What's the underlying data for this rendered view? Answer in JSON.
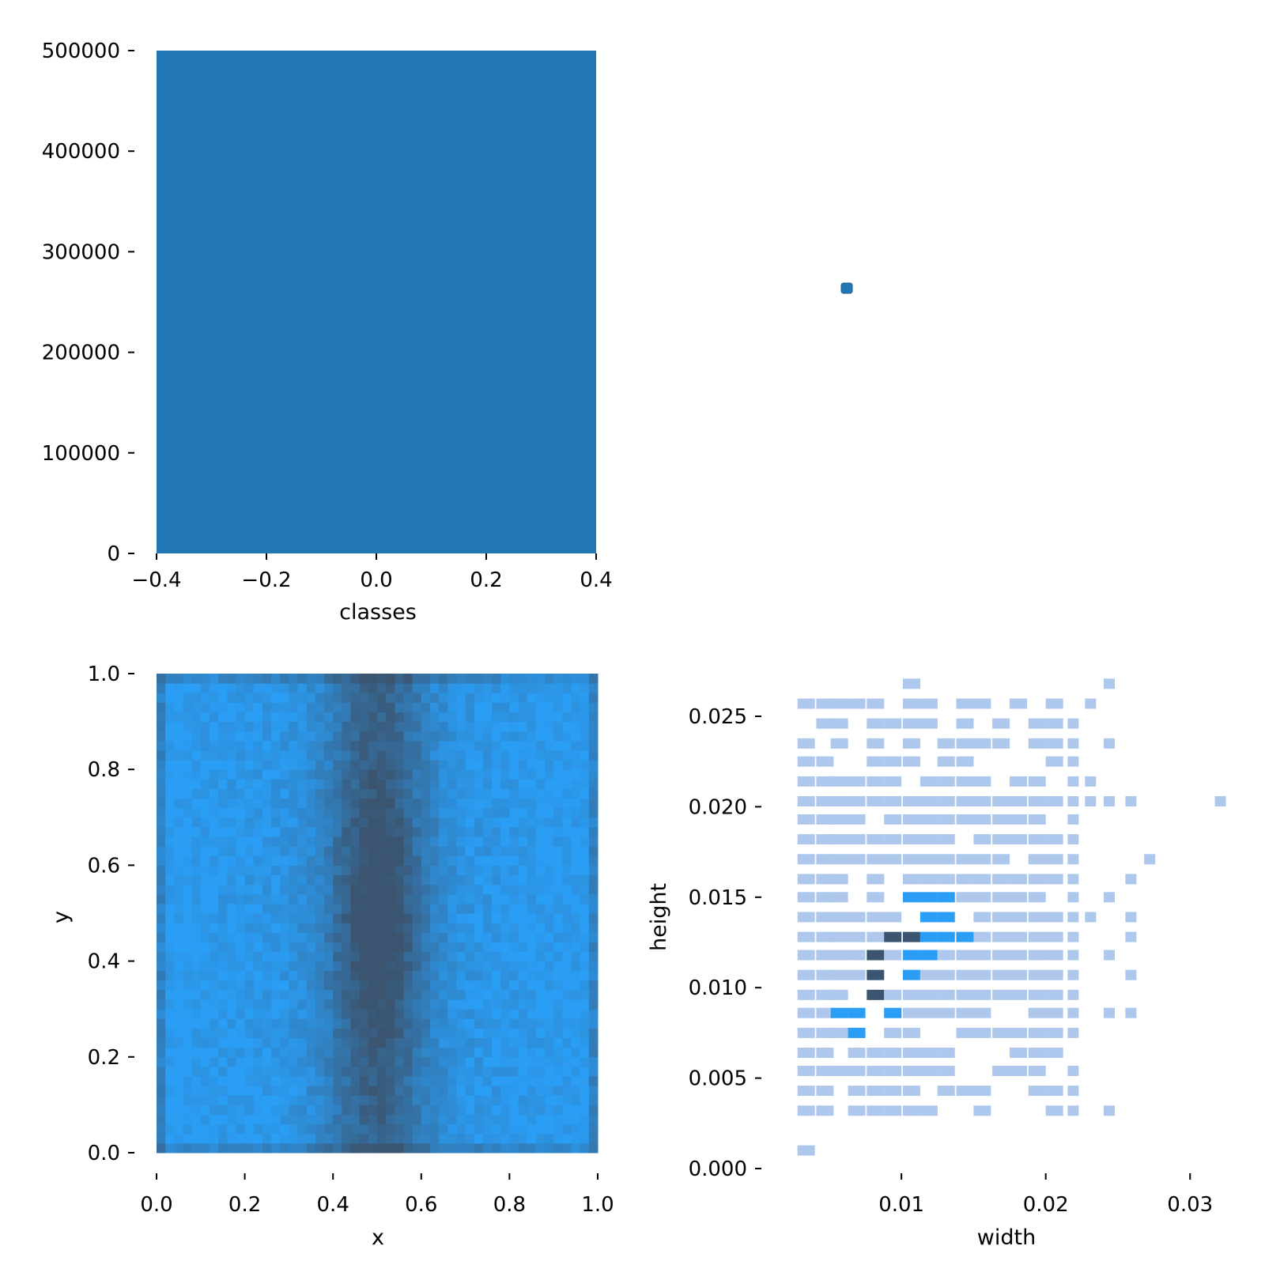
{
  "colors": {
    "bar": "#2077b4",
    "heat_light": "#2a9df4",
    "heat_dark": "#3b546f",
    "hist_light": "#aec7ec",
    "hist_mid": "#2a9df4",
    "hist_dark": "#3b546f"
  },
  "chart_data": [
    {
      "id": "classes",
      "type": "bar",
      "categories": [
        0
      ],
      "values": [
        500000
      ],
      "xlabel": "classes",
      "ylabel": "",
      "xlim": [
        -0.4,
        0.4
      ],
      "ylim": [
        0,
        500000
      ],
      "xticks": [
        "−0.4",
        "−0.2",
        "0.0",
        "0.2",
        "0.4"
      ],
      "yticks": [
        "0",
        "100000",
        "200000",
        "300000",
        "400000",
        "500000"
      ],
      "grid": false
    },
    {
      "id": "marker",
      "type": "scatter",
      "points": [
        [
          0.5,
          0.5
        ]
      ],
      "xlabel": "",
      "ylabel": ""
    },
    {
      "id": "xy",
      "type": "heatmap",
      "xlabel": "x",
      "ylabel": "y",
      "xlim": [
        0.0,
        1.0
      ],
      "ylim": [
        0.0,
        1.0
      ],
      "xticks": [
        "0.0",
        "0.2",
        "0.4",
        "0.6",
        "0.8",
        "1.0"
      ],
      "yticks": [
        "0.0",
        "0.2",
        "0.4",
        "0.6",
        "0.8",
        "1.0"
      ],
      "bins": 50,
      "density_peak": [
        0.5,
        0.5
      ],
      "grid": false
    },
    {
      "id": "wh",
      "type": "heatmap",
      "xlabel": "width",
      "ylabel": "height",
      "xlim": [
        0.0015,
        0.033
      ],
      "ylim": [
        0.0,
        0.027
      ],
      "xticks": [
        {
          "v": 0.01,
          "t": "0.01"
        },
        {
          "v": 0.02,
          "t": "0.02"
        },
        {
          "v": 0.03,
          "t": "0.03"
        }
      ],
      "yticks": [
        {
          "v": 0.0,
          "t": "0.000"
        },
        {
          "v": 0.005,
          "t": "0.005"
        },
        {
          "v": 0.01,
          "t": "0.010"
        },
        {
          "v": 0.015,
          "t": "0.015"
        },
        {
          "v": 0.02,
          "t": "0.020"
        },
        {
          "v": 0.025,
          "t": "0.025"
        }
      ],
      "widths": [
        0.0034,
        0.0047,
        0.0057,
        0.0069,
        0.0082,
        0.0094,
        0.0107,
        0.0119,
        0.0131,
        0.0144,
        0.0156,
        0.0169,
        0.0181,
        0.0194,
        0.0206,
        0.0219,
        0.0231,
        0.0244,
        0.0259,
        0.0272,
        0.0321
      ],
      "heights": [
        0.001,
        0.0032,
        0.0043,
        0.0054,
        0.0064,
        0.0075,
        0.0086,
        0.0096,
        0.0107,
        0.0118,
        0.0128,
        0.0139,
        0.015,
        0.016,
        0.0171,
        0.0182,
        0.0193,
        0.0203,
        0.0214,
        0.0225,
        0.0235,
        0.0246,
        0.0257,
        0.0268
      ],
      "dark_cells": [
        [
          0.0082,
          0.0107
        ],
        [
          0.0082,
          0.0096
        ],
        [
          0.0094,
          0.0128
        ],
        [
          0.0107,
          0.0128
        ],
        [
          0.0082,
          0.0118
        ]
      ],
      "mid_cells": [
        [
          0.0094,
          0.0107
        ],
        [
          0.0107,
          0.0107
        ],
        [
          0.0107,
          0.0118
        ],
        [
          0.0119,
          0.0118
        ],
        [
          0.0107,
          0.0139
        ],
        [
          0.0119,
          0.0139
        ],
        [
          0.0131,
          0.0128
        ],
        [
          0.0131,
          0.0139
        ],
        [
          0.0069,
          0.0086
        ],
        [
          0.0069,
          0.0075
        ],
        [
          0.0082,
          0.0075
        ],
        [
          0.0094,
          0.0086
        ],
        [
          0.0057,
          0.0086
        ],
        [
          0.0107,
          0.015
        ],
        [
          0.0119,
          0.015
        ],
        [
          0.0131,
          0.015
        ],
        [
          0.0144,
          0.0139
        ],
        [
          0.0144,
          0.0128
        ],
        [
          0.0119,
          0.0128
        ],
        [
          0.0069,
          0.0096
        ]
      ],
      "grid": false
    }
  ]
}
